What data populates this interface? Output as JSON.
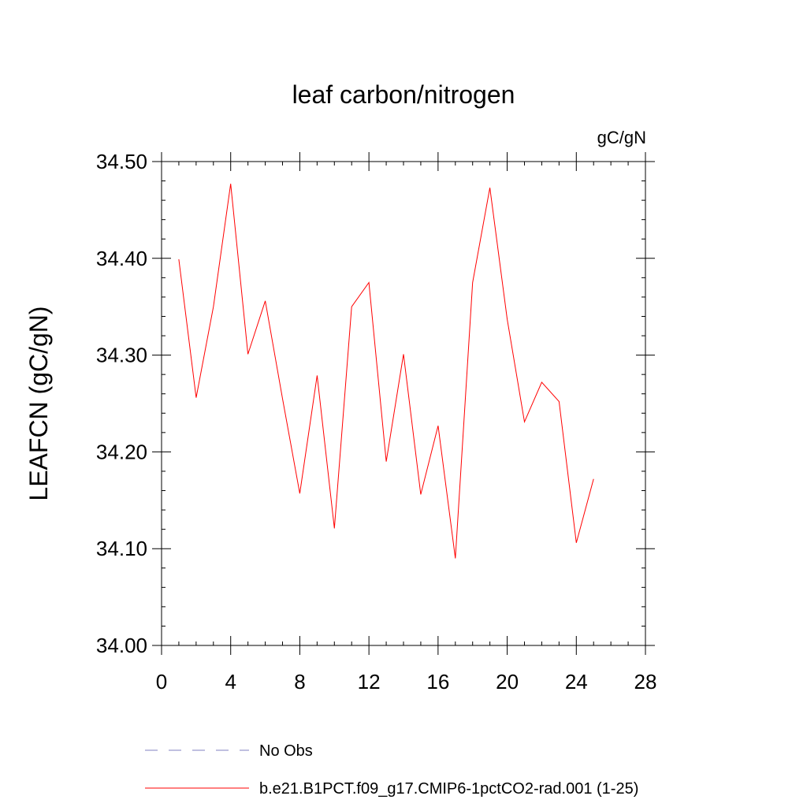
{
  "chart_data": {
    "type": "line",
    "title": "leaf carbon/nitrogen",
    "units_label": "gC/gN",
    "ylabel": "LEAFCN  (gC/gN)",
    "xlabel": "",
    "xlim": [
      0,
      28
    ],
    "ylim": [
      34.0,
      34.5
    ],
    "x_ticks": [
      0,
      4,
      8,
      12,
      16,
      20,
      24,
      28
    ],
    "x_tick_labels": [
      "0",
      "4",
      "8",
      "12",
      "16",
      "20",
      "24",
      "28"
    ],
    "y_ticks": [
      34.0,
      34.1,
      34.2,
      34.3,
      34.4,
      34.5
    ],
    "y_tick_labels": [
      "34.00",
      "34.10",
      "34.20",
      "34.30",
      "34.40",
      "34.50"
    ],
    "grid": false,
    "legend_position": "bottom",
    "series": [
      {
        "name": "b.e21.B1PCT.f09_g17.CMIP6-1pctCO2-rad.001 (1-25)",
        "color": "#ff0000",
        "line_style": "solid",
        "x": [
          1,
          2,
          3,
          4,
          5,
          6,
          7,
          8,
          9,
          10,
          11,
          12,
          13,
          14,
          15,
          16,
          17,
          18,
          19,
          20,
          21,
          22,
          23,
          24,
          25
        ],
        "y": [
          34.399,
          34.256,
          34.35,
          34.477,
          34.301,
          34.356,
          34.255,
          34.157,
          34.279,
          34.121,
          34.35,
          34.375,
          34.19,
          34.301,
          34.156,
          34.227,
          34.09,
          34.375,
          34.473,
          34.337,
          34.231,
          34.272,
          34.252,
          34.106,
          34.172
        ]
      }
    ],
    "legend": [
      {
        "label": "No Obs",
        "color": "#8080c0",
        "line_style": "dashed"
      },
      {
        "label": "b.e21.B1PCT.f09_g17.CMIP6-1pctCO2-rad.001 (1-25)",
        "color": "#ff0000",
        "line_style": "solid"
      }
    ]
  }
}
